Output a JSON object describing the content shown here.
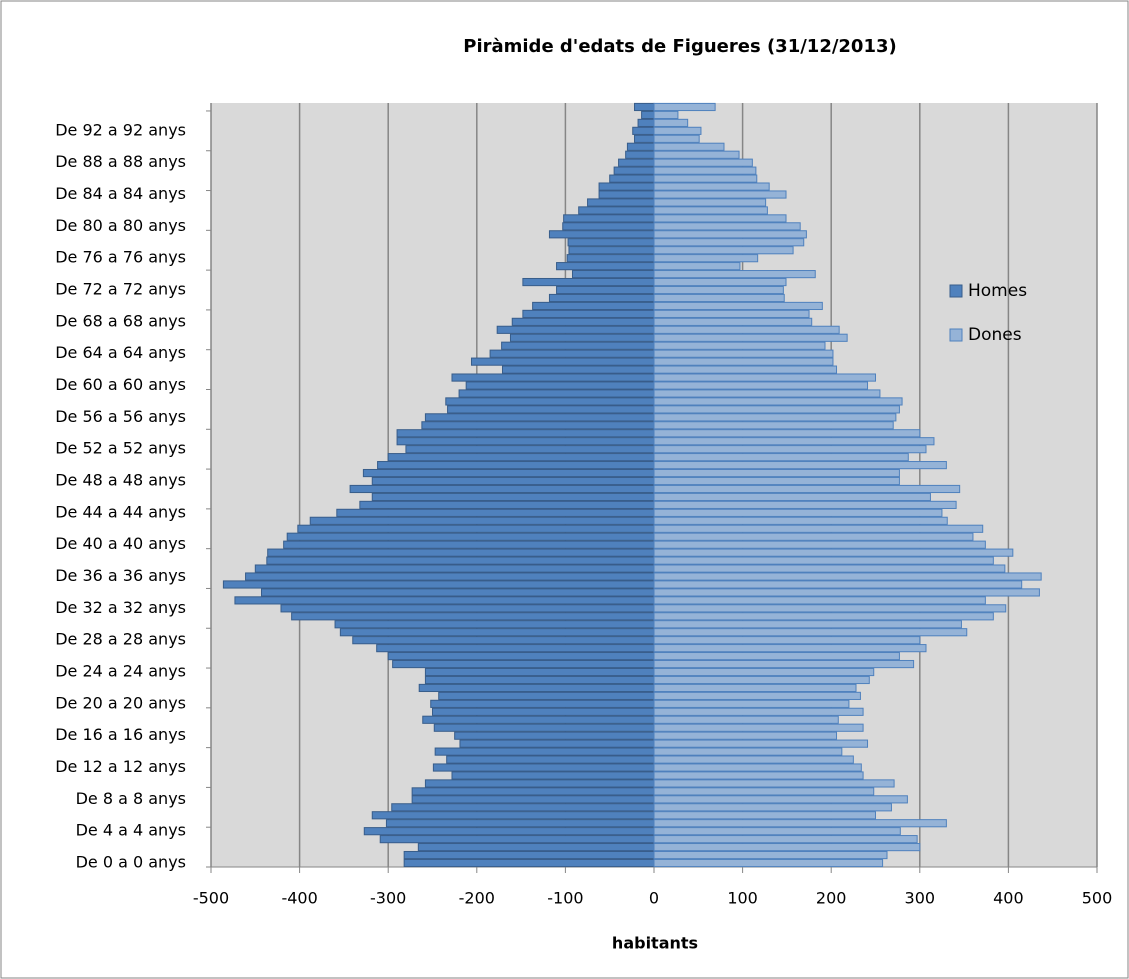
{
  "chart_data": {
    "type": "pyramid",
    "title": "Piràmide d'edats de Figueres (31/12/2013)",
    "xlabel": "habitants",
    "categories": [
      "De 0 a 0 anys",
      null,
      null,
      null,
      "De 4 a 4 anys",
      null,
      null,
      null,
      "De 8 a 8 anys",
      null,
      null,
      null,
      "De 12 a 12 anys",
      null,
      null,
      null,
      "De 16 a 16 anys",
      null,
      null,
      null,
      "De 20 a 20 anys",
      null,
      null,
      null,
      "De 24 a 24 anys",
      null,
      null,
      null,
      "De 28 a 28 anys",
      null,
      null,
      null,
      "De 32 a 32 anys",
      null,
      null,
      null,
      "De 36 a 36 anys",
      null,
      null,
      null,
      "De 40 a 40 anys",
      null,
      null,
      null,
      "De 44 a 44 anys",
      null,
      null,
      null,
      "De 48 a 48 anys",
      null,
      null,
      null,
      "De 52 a 52 anys",
      null,
      null,
      null,
      "De 56 a 56 anys",
      null,
      null,
      null,
      "De 60 a 60 anys",
      null,
      null,
      null,
      "De 64 a 64 anys",
      null,
      null,
      null,
      "De 68 a 68 anys",
      null,
      null,
      null,
      "De 72 a 72 anys",
      null,
      null,
      null,
      "De 76 a 76 anys",
      null,
      null,
      null,
      "De 80 a 80 anys",
      null,
      null,
      null,
      "De 84 a 84 anys",
      null,
      null,
      null,
      "De 88 a 88 anys",
      null,
      null,
      null,
      "De 92 a 92 anys",
      null,
      null,
      null
    ],
    "series": [
      {
        "name": "Homes",
        "color": "#4f81bd",
        "values": [
          -282,
          -282,
          -266,
          -309,
          -327,
          -302,
          -318,
          -296,
          -273,
          -273,
          -258,
          -228,
          -249,
          -234,
          -247,
          -219,
          -225,
          -248,
          -261,
          -250,
          -252,
          -243,
          -265,
          -258,
          -258,
          -295,
          -300,
          -313,
          -340,
          -354,
          -360,
          -409,
          -421,
          -473,
          -443,
          -486,
          -461,
          -450,
          -437,
          -436,
          -418,
          -414,
          -402,
          -388,
          -358,
          -332,
          -318,
          -343,
          -318,
          -328,
          -312,
          -300,
          -280,
          -290,
          -290,
          -262,
          -258,
          -233,
          -235,
          -220,
          -212,
          -228,
          -171,
          -206,
          -185,
          -172,
          -162,
          -177,
          -160,
          -148,
          -137,
          -118,
          -110,
          -148,
          -92,
          -110,
          -98,
          -96,
          -97,
          -118,
          -103,
          -102,
          -85,
          -75,
          -62,
          -62,
          -50,
          -45,
          -40,
          -32,
          -30,
          -22,
          -24,
          -18,
          -14,
          -22
        ]
      },
      {
        "name": "Dones",
        "color": "#95b3d7",
        "values": [
          258,
          263,
          300,
          297,
          278,
          330,
          250,
          268,
          286,
          248,
          271,
          236,
          234,
          225,
          212,
          241,
          206,
          236,
          208,
          236,
          220,
          233,
          228,
          243,
          248,
          293,
          277,
          307,
          300,
          353,
          347,
          383,
          397,
          374,
          435,
          415,
          437,
          396,
          383,
          405,
          374,
          360,
          371,
          331,
          325,
          341,
          312,
          345,
          277,
          277,
          330,
          287,
          307,
          316,
          300,
          270,
          273,
          277,
          280,
          255,
          241,
          250,
          206,
          202,
          202,
          193,
          218,
          209,
          178,
          175,
          190,
          147,
          146,
          149,
          182,
          97,
          117,
          157,
          169,
          172,
          165,
          149,
          128,
          126,
          149,
          130,
          116,
          115,
          111,
          96,
          79,
          51,
          53,
          38,
          27,
          69
        ]
      }
    ],
    "xlim": [
      -500,
      500
    ],
    "xticks": [
      -500,
      -400,
      -300,
      -200,
      -100,
      0,
      100,
      200,
      300,
      400,
      500
    ],
    "grid": true,
    "legend": "right"
  }
}
